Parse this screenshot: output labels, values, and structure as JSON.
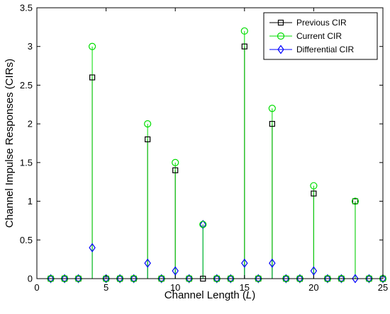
{
  "chart_data": {
    "type": "stem",
    "xlabel": "Channel Length",
    "xlabel_var": "L",
    "ylabel": "Channel Impulse Responses (CIRs)",
    "xlim": [
      0,
      25
    ],
    "ylim": [
      0,
      3.5
    ],
    "xticks": [
      0,
      5,
      10,
      15,
      20,
      25
    ],
    "yticks": [
      0,
      0.5,
      1,
      1.5,
      2,
      2.5,
      3,
      3.5
    ],
    "grid": false,
    "legend_position": "top-right",
    "x": [
      1,
      2,
      3,
      4,
      5,
      6,
      7,
      8,
      9,
      10,
      11,
      12,
      13,
      14,
      15,
      16,
      17,
      18,
      19,
      20,
      21,
      22,
      23,
      24,
      25
    ],
    "series": [
      {
        "name": "Previous CIR",
        "color": "#000000",
        "marker": "square",
        "values": [
          0,
          0,
          0,
          2.6,
          0,
          0,
          0,
          1.8,
          0,
          1.4,
          0,
          0,
          0,
          0,
          3.0,
          0,
          2.0,
          0,
          0,
          1.1,
          0,
          0,
          1.0,
          0,
          0
        ]
      },
      {
        "name": "Current CIR",
        "color": "#00dd00",
        "marker": "circle",
        "values": [
          0,
          0,
          0,
          3.0,
          0,
          0,
          0,
          2.0,
          0,
          1.5,
          0,
          0.7,
          0,
          0,
          3.2,
          0,
          2.2,
          0,
          0,
          1.2,
          0,
          0,
          1.0,
          0,
          0
        ]
      },
      {
        "name": "Differential CIR",
        "color": "#0000ff",
        "marker": "diamond",
        "values": [
          0,
          0,
          0,
          0.4,
          0,
          0,
          0,
          0.2,
          0,
          0.1,
          0,
          0.7,
          0,
          0,
          0.2,
          0,
          0.2,
          0,
          0,
          0.1,
          0,
          0,
          0,
          0,
          0
        ]
      }
    ]
  }
}
